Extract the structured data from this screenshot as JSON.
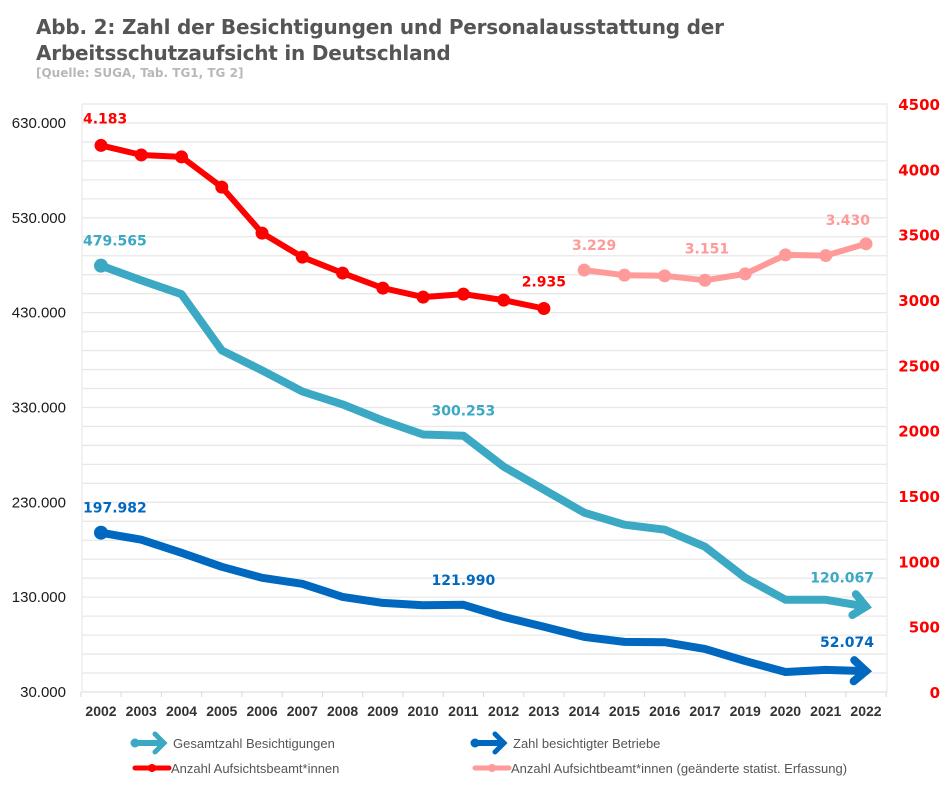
{
  "header": {
    "title": "Abb. 2: Zahl der Besichtigungen und Personalausstattung der Arbeitsschutzaufsicht in Deutschland",
    "source": "[Quelle: SUGA, Tab. TG1, TG 2]"
  },
  "chart_data": {
    "type": "line",
    "title": "Abb. 2: Zahl der Besichtigungen und Personalausstattung der Arbeitsschutzaufsicht in Deutschland",
    "subtitle": "[Quelle: SUGA, Tab. TG1, TG 2]",
    "xlabel": "",
    "ylabel": "",
    "y2label": "",
    "categories": [
      "2002",
      "2003",
      "2004",
      "2005",
      "2006",
      "2007",
      "2008",
      "2009",
      "2010",
      "2011",
      "2012",
      "2013",
      "2014",
      "2015",
      "2016",
      "2017",
      "2019",
      "2020",
      "2021",
      "2022"
    ],
    "y_left": {
      "range": [
        30000,
        650000
      ],
      "ticks": [
        30000,
        130000,
        230000,
        330000,
        430000,
        530000,
        630000
      ],
      "tick_labels": [
        "30.000",
        "130.000",
        "230.000",
        "330.000",
        "430.000",
        "530.000",
        "630.000"
      ],
      "minor_gridline_step": 20000
    },
    "y_right": {
      "range": [
        0,
        4500
      ],
      "ticks": [
        0,
        500,
        1000,
        1500,
        2000,
        2500,
        3000,
        3500,
        4000,
        4500
      ],
      "tick_labels": [
        "0",
        "500",
        "1000",
        "1500",
        "2000",
        "2500",
        "3000",
        "3500",
        "4000",
        "4500"
      ],
      "color": "#ff0000"
    },
    "grid": true,
    "legend_position": "bottom",
    "series": [
      {
        "name": "Gesamtzahl Besichtigungen",
        "axis": "left",
        "color": "#3ba8c4",
        "style": "line-arrow",
        "values": [
          479565,
          464000,
          449400,
          390200,
          369100,
          346900,
          333200,
          316300,
          301500,
          300253,
          267700,
          243400,
          219100,
          206400,
          201100,
          183200,
          150400,
          127200,
          127200,
          120067
        ],
        "labels": [
          {
            "index": 0,
            "text": "479.565"
          },
          {
            "index": 9,
            "text": "300.253"
          },
          {
            "index": 19,
            "text": "120.067"
          }
        ]
      },
      {
        "name": "Zahl besichtigter Betriebe",
        "axis": "left",
        "color": "#0068bf",
        "style": "line-arrow",
        "values": [
          197982,
          190600,
          176800,
          162000,
          150400,
          144100,
          130300,
          124000,
          121500,
          121990,
          109200,
          98700,
          88100,
          82800,
          82500,
          75400,
          62700,
          51100,
          53300,
          52074
        ],
        "labels": [
          {
            "index": 0,
            "text": "197.982"
          },
          {
            "index": 9,
            "text": "121.990"
          },
          {
            "index": 19,
            "text": "52.074"
          }
        ]
      },
      {
        "name": "Anzahl Aufsichtsbeamt*innen",
        "axis": "right",
        "color": "#ff0000",
        "style": "line-markers",
        "values": [
          4183,
          4110,
          4095,
          3864,
          3512,
          3328,
          3206,
          3091,
          3022,
          3045,
          2999,
          2935,
          null,
          null,
          null,
          null,
          null,
          null,
          null,
          null
        ],
        "labels": [
          {
            "index": 0,
            "text": "4.183"
          },
          {
            "index": 11,
            "text": "2.935"
          }
        ]
      },
      {
        "name": "Anzahl Aufsichtbeamt*innen (geänderte statist. Erfassung)",
        "axis": "right",
        "color": "#ff9a9a",
        "style": "line-markers",
        "values": [
          null,
          null,
          null,
          null,
          null,
          null,
          null,
          null,
          null,
          null,
          null,
          null,
          3229,
          3190,
          3185,
          3151,
          3200,
          3345,
          3340,
          3430
        ],
        "labels": [
          {
            "index": 12,
            "text": "3.229"
          },
          {
            "index": 15,
            "text": "3.151"
          },
          {
            "index": 19,
            "text": "3.430"
          }
        ]
      }
    ]
  }
}
